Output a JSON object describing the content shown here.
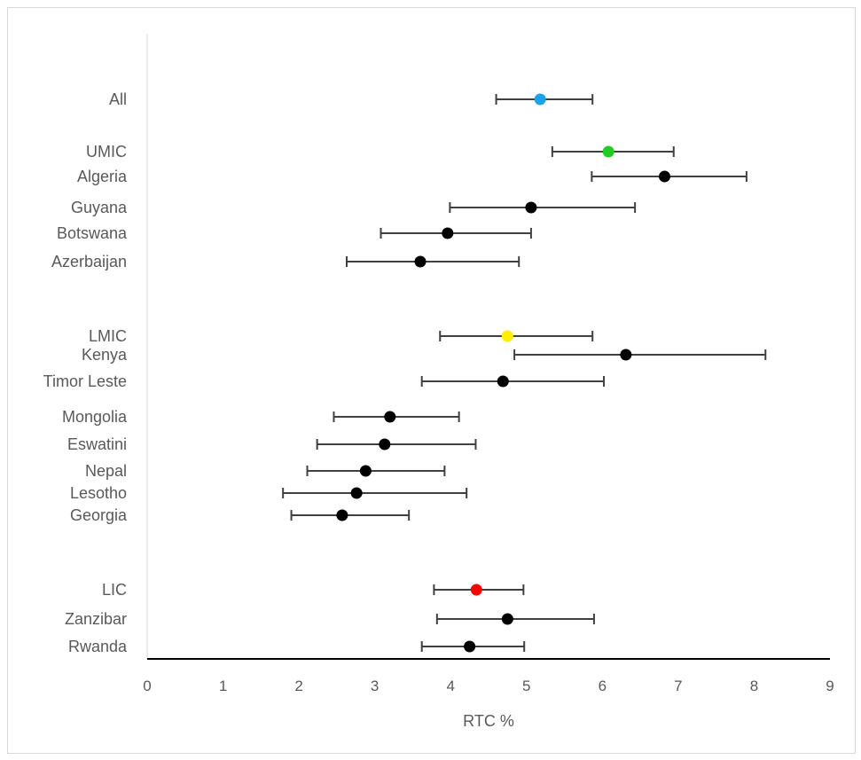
{
  "chart_data": {
    "type": "scatter",
    "orientation": "horizontal-forest-plot",
    "xlabel": "RTC %",
    "xlim": [
      0,
      9
    ],
    "x_ticks": [
      "0",
      "1",
      "2",
      "3",
      "4",
      "5",
      "6",
      "7",
      "8",
      "9"
    ],
    "grid": false,
    "legend": "none",
    "rows": [
      {
        "label": "All",
        "value": 5.18,
        "low": 4.6,
        "high": 5.87,
        "color": "#1aa3e8"
      },
      {
        "label": "UMIC",
        "value": 6.08,
        "low": 5.34,
        "high": 6.94,
        "color": "#22cc22"
      },
      {
        "label": "Algeria",
        "value": 6.82,
        "low": 5.86,
        "high": 7.9,
        "color": "#000000"
      },
      {
        "label": "Guyana",
        "value": 5.06,
        "low": 3.99,
        "high": 6.43,
        "color": "#000000"
      },
      {
        "label": "Botswana",
        "value": 3.96,
        "low": 3.08,
        "high": 5.06,
        "color": "#000000"
      },
      {
        "label": "Azerbaijan",
        "value": 3.6,
        "low": 2.63,
        "high": 4.9,
        "color": "#000000"
      },
      {
        "label": "LMIC",
        "value": 4.75,
        "low": 3.86,
        "high": 5.87,
        "color": "#ffee00"
      },
      {
        "label": "Kenya",
        "value": 6.31,
        "low": 4.84,
        "high": 8.15,
        "color": "#000000"
      },
      {
        "label": "Timor Leste",
        "value": 4.69,
        "low": 3.62,
        "high": 6.02,
        "color": "#000000"
      },
      {
        "label": "Mongolia",
        "value": 3.2,
        "low": 2.46,
        "high": 4.11,
        "color": "#000000"
      },
      {
        "label": "Eswatini",
        "value": 3.13,
        "low": 2.24,
        "high": 4.33,
        "color": "#000000"
      },
      {
        "label": "Nepal",
        "value": 2.88,
        "low": 2.11,
        "high": 3.92,
        "color": "#000000"
      },
      {
        "label": "Lesotho",
        "value": 2.76,
        "low": 1.79,
        "high": 4.21,
        "color": "#000000"
      },
      {
        "label": "Georgia",
        "value": 2.57,
        "low": 1.9,
        "high": 3.45,
        "color": "#000000"
      },
      {
        "label": "LIC",
        "value": 4.34,
        "low": 3.78,
        "high": 4.96,
        "color": "#ff0000"
      },
      {
        "label": "Zanzibar",
        "value": 4.75,
        "low": 3.82,
        "high": 5.89,
        "color": "#000000"
      },
      {
        "label": "Rwanda",
        "value": 4.25,
        "low": 3.62,
        "high": 4.97,
        "color": "#000000"
      }
    ]
  }
}
